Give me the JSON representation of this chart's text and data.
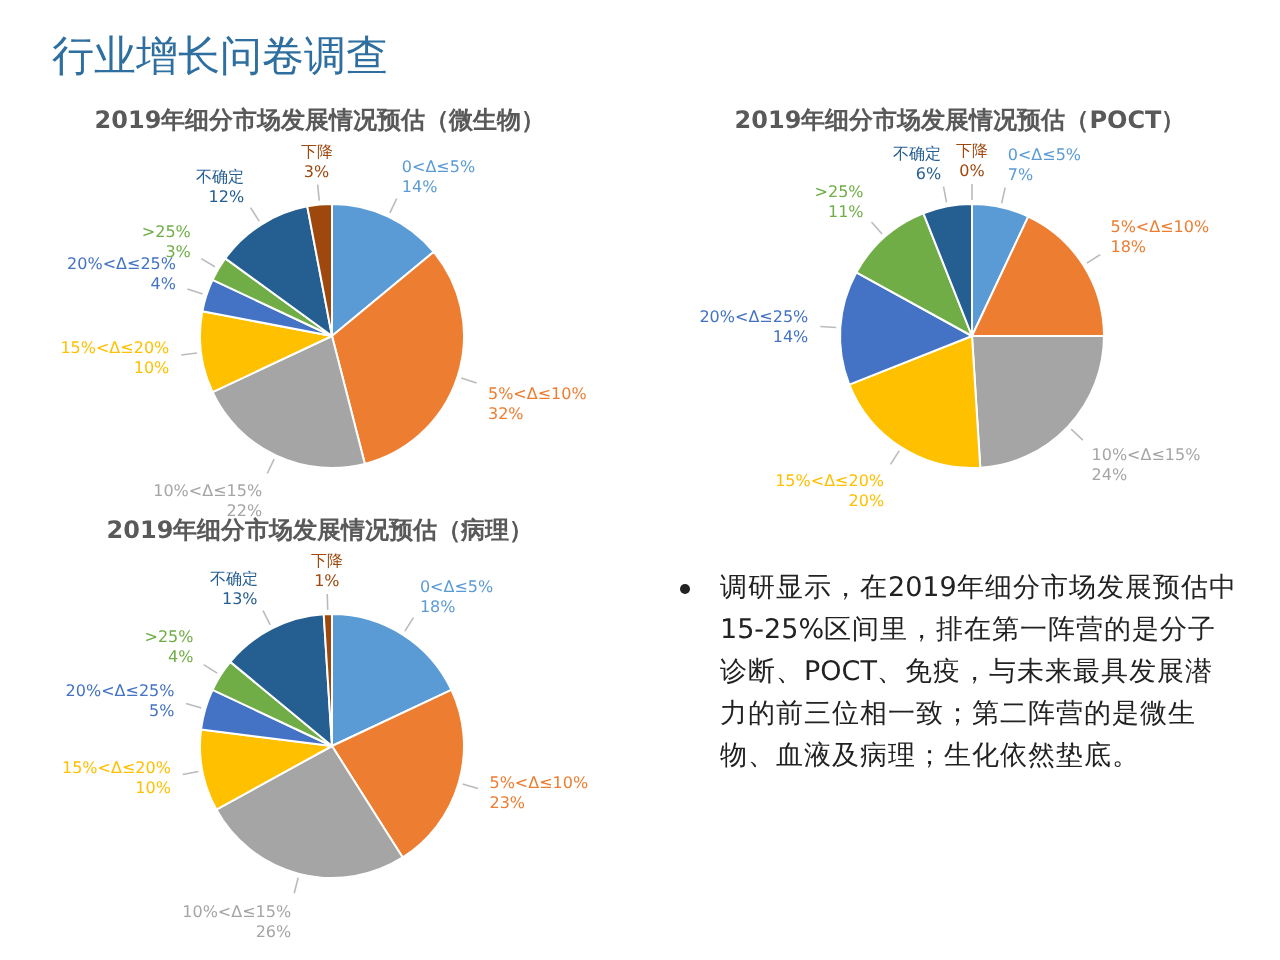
{
  "chart_data": [
    {
      "type": "other",
      "title": "行业增长问卷调查",
      "annotations": [
        "调研显示，在2019年细分市场发展预估中15-25%区间里，排在第一阵营的是分子诊断、POCT、免疫，与未来最具发展潜力的前三位相一致；第二阵营的是微生物、血液及病理；生化依然垫底。"
      ]
    },
    {
      "type": "pie",
      "title": "2019年细分市场发展情况预估（微生物）",
      "categories": [
        "0<Δ≤5%",
        "5%<Δ≤10%",
        "10%<Δ≤15%",
        "15%<Δ≤20%",
        "20%<Δ≤25%",
        ">25%",
        "不确定",
        "下降"
      ],
      "values": [
        14,
        32,
        22,
        10,
        4,
        3,
        12,
        3
      ],
      "value_labels": [
        "14%",
        "32%",
        "22%",
        "10%",
        "4%",
        "3%",
        "12%",
        "3%"
      ],
      "colors": [
        "#5b9bd5",
        "#ed7d31",
        "#a5a5a5",
        "#ffc000",
        "#4472c4",
        "#70ad47",
        "#255e91",
        "#9e480e"
      ]
    },
    {
      "type": "pie",
      "title": "2019年细分市场发展情况预估（POCT）",
      "categories": [
        "0<Δ≤5%",
        "5%<Δ≤10%",
        "10%<Δ≤15%",
        "15%<Δ≤20%",
        "20%<Δ≤25%",
        ">25%",
        "不确定",
        "下降"
      ],
      "values": [
        7,
        18,
        24,
        20,
        14,
        11,
        6,
        0
      ],
      "value_labels": [
        "7%",
        "18%",
        "24%",
        "20%",
        "14%",
        "11%",
        "6%",
        "0%"
      ],
      "colors": [
        "#5b9bd5",
        "#ed7d31",
        "#a5a5a5",
        "#ffc000",
        "#4472c4",
        "#70ad47",
        "#255e91",
        "#9e480e"
      ]
    },
    {
      "type": "pie",
      "title": "2019年细分市场发展情况预估（病理）",
      "categories": [
        "0<Δ≤5%",
        "5%<Δ≤10%",
        "10%<Δ≤15%",
        "15%<Δ≤20%",
        "20%<Δ≤25%",
        ">25%",
        "不确定",
        "下降"
      ],
      "values": [
        18,
        23,
        26,
        10,
        5,
        4,
        13,
        1
      ],
      "value_labels": [
        "18%",
        "23%",
        "26%",
        "10%",
        "5%",
        "4%",
        "13%",
        "1%"
      ],
      "colors": [
        "#5b9bd5",
        "#ed7d31",
        "#a5a5a5",
        "#ffc000",
        "#4472c4",
        "#70ad47",
        "#255e91",
        "#9e480e"
      ]
    }
  ]
}
